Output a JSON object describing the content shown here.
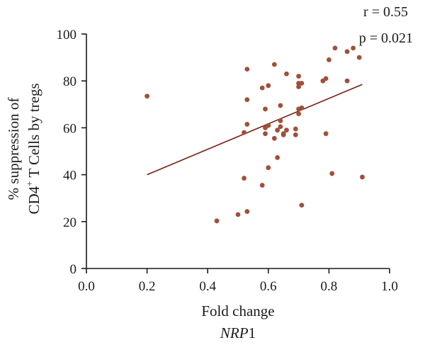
{
  "chart_data": {
    "type": "scatter",
    "xlabel": "Fold change",
    "xlabel_gene": "NRP",
    "xlabel_gene_suffix": "1",
    "ylabel_line1": "% suppression of",
    "ylabel_line2_prefix": "CD4",
    "ylabel_line2_sup": "+",
    "ylabel_line2_suffix": " T Cells by tregs",
    "xlim": [
      0.0,
      1.0
    ],
    "ylim": [
      0,
      100
    ],
    "xticks": [
      "0.0",
      "0.2",
      "0.4",
      "0.6",
      "0.8",
      "1.0"
    ],
    "xtick_values": [
      0.0,
      0.2,
      0.4,
      0.6,
      0.8,
      1.0
    ],
    "yticks": [
      "0",
      "20",
      "40",
      "60",
      "80",
      "100"
    ],
    "ytick_values": [
      0,
      20,
      40,
      60,
      80,
      100
    ],
    "stats": {
      "r": "r = 0.55",
      "p": "p = 0.021"
    },
    "point_color": "#a0503a",
    "line_color": "#7a1f12",
    "points": [
      [
        0.2,
        73.5
      ],
      [
        0.43,
        20.3
      ],
      [
        0.5,
        23.0
      ],
      [
        0.52,
        38.5
      ],
      [
        0.52,
        58.0
      ],
      [
        0.53,
        24.3
      ],
      [
        0.53,
        61.5
      ],
      [
        0.53,
        72.0
      ],
      [
        0.53,
        85.0
      ],
      [
        0.58,
        35.5
      ],
      [
        0.58,
        77.0
      ],
      [
        0.59,
        57.5
      ],
      [
        0.59,
        60.0
      ],
      [
        0.59,
        68.0
      ],
      [
        0.6,
        43.0
      ],
      [
        0.6,
        61.0
      ],
      [
        0.6,
        78.0
      ],
      [
        0.62,
        55.5
      ],
      [
        0.62,
        87.0
      ],
      [
        0.63,
        47.3
      ],
      [
        0.63,
        59.0
      ],
      [
        0.64,
        60.5
      ],
      [
        0.64,
        63.0
      ],
      [
        0.64,
        69.5
      ],
      [
        0.65,
        57.0
      ],
      [
        0.65,
        57.5
      ],
      [
        0.66,
        59.0
      ],
      [
        0.66,
        83.0
      ],
      [
        0.69,
        57.0
      ],
      [
        0.69,
        59.5
      ],
      [
        0.7,
        66.0
      ],
      [
        0.7,
        68.0
      ],
      [
        0.7,
        77.5
      ],
      [
        0.7,
        79.0
      ],
      [
        0.7,
        82.0
      ],
      [
        0.71,
        27.0
      ],
      [
        0.71,
        68.5
      ],
      [
        0.71,
        79.0
      ],
      [
        0.78,
        80.0
      ],
      [
        0.79,
        57.5
      ],
      [
        0.79,
        81.0
      ],
      [
        0.8,
        89.0
      ],
      [
        0.81,
        40.5
      ],
      [
        0.82,
        94.0
      ],
      [
        0.86,
        80.0
      ],
      [
        0.86,
        92.5
      ],
      [
        0.88,
        94.0
      ],
      [
        0.9,
        90.0
      ],
      [
        0.91,
        39.0
      ]
    ],
    "regression": {
      "x": [
        0.2,
        0.91
      ],
      "y": [
        40.0,
        78.5
      ]
    },
    "grid": false,
    "legend": "none"
  }
}
